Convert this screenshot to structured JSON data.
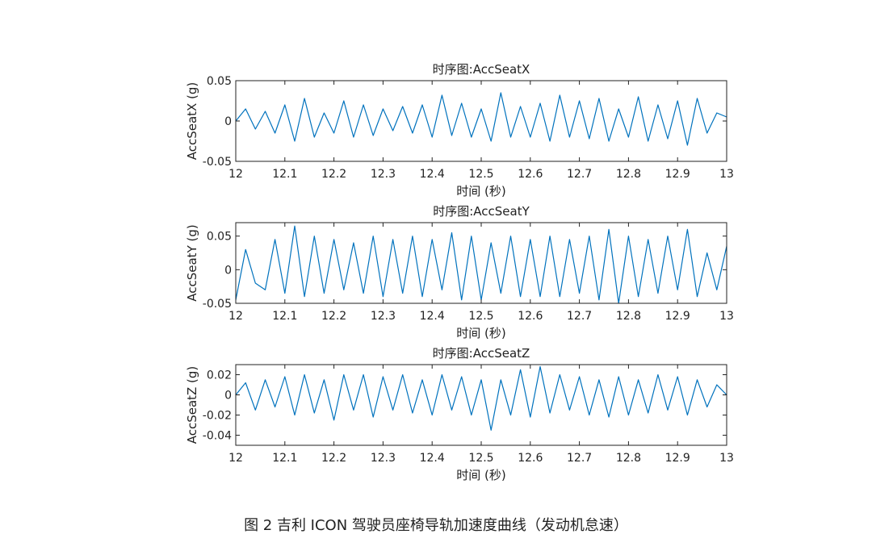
{
  "caption": "图 2 吉利 ICON 驾驶员座椅导轨加速度曲线（发动机怠速）",
  "line_color": "#0072BD",
  "chart_data": [
    {
      "type": "line",
      "title": "时序图:AccSeatX",
      "xlabel": "时间 (秒)",
      "ylabel": "AccSeatX (g)",
      "xlim": [
        12,
        13
      ],
      "ylim": [
        -0.05,
        0.05
      ],
      "xticks": [
        12,
        12.1,
        12.2,
        12.3,
        12.4,
        12.5,
        12.6,
        12.7,
        12.8,
        12.9,
        13
      ],
      "xtick_labels": [
        "12",
        "12.1",
        "12.2",
        "12.3",
        "12.4",
        "12.5",
        "12.6",
        "12.7",
        "12.8",
        "12.9",
        "13"
      ],
      "yticks": [
        -0.05,
        0,
        0.05
      ],
      "ytick_labels": [
        "-0.05",
        "0",
        "0.05"
      ],
      "grid": false,
      "series": [
        {
          "x": [
            12,
            12.02,
            12.04,
            12.06,
            12.08,
            12.1,
            12.12,
            12.14,
            12.16,
            12.18,
            12.2,
            12.22,
            12.24,
            12.26,
            12.28,
            12.3,
            12.32,
            12.34,
            12.36,
            12.38,
            12.4,
            12.42,
            12.44,
            12.46,
            12.48,
            12.5,
            12.52,
            12.54,
            12.56,
            12.58,
            12.6,
            12.62,
            12.64,
            12.66,
            12.68,
            12.7,
            12.72,
            12.74,
            12.76,
            12.78,
            12.8,
            12.82,
            12.84,
            12.86,
            12.88,
            12.9,
            12.92,
            12.94,
            12.96,
            12.98,
            13
          ],
          "y": [
            0.0,
            0.015,
            -0.01,
            0.012,
            -0.015,
            0.02,
            -0.025,
            0.028,
            -0.02,
            0.01,
            -0.015,
            0.025,
            -0.02,
            0.02,
            -0.018,
            0.015,
            -0.012,
            0.018,
            -0.015,
            0.02,
            -0.02,
            0.032,
            -0.018,
            0.022,
            -0.02,
            0.015,
            -0.025,
            0.035,
            -0.02,
            0.018,
            -0.02,
            0.022,
            -0.025,
            0.032,
            -0.02,
            0.025,
            -0.022,
            0.028,
            -0.025,
            0.015,
            -0.02,
            0.03,
            -0.025,
            0.02,
            -0.022,
            0.025,
            -0.03,
            0.028,
            -0.015,
            0.01,
            0.005
          ]
        }
      ]
    },
    {
      "type": "line",
      "title": "时序图:AccSeatY",
      "xlabel": "时间 (秒)",
      "ylabel": "AccSeatY (g)",
      "xlim": [
        12,
        13
      ],
      "ylim": [
        -0.05,
        0.07
      ],
      "xticks": [
        12,
        12.1,
        12.2,
        12.3,
        12.4,
        12.5,
        12.6,
        12.7,
        12.8,
        12.9,
        13
      ],
      "xtick_labels": [
        "12",
        "12.1",
        "12.2",
        "12.3",
        "12.4",
        "12.5",
        "12.6",
        "12.7",
        "12.8",
        "12.9",
        "13"
      ],
      "yticks": [
        -0.05,
        0,
        0.05
      ],
      "ytick_labels": [
        "-0.05",
        "0",
        "0.05"
      ],
      "grid": false,
      "series": [
        {
          "x": [
            12,
            12.02,
            12.04,
            12.06,
            12.08,
            12.1,
            12.12,
            12.14,
            12.16,
            12.18,
            12.2,
            12.22,
            12.24,
            12.26,
            12.28,
            12.3,
            12.32,
            12.34,
            12.36,
            12.38,
            12.4,
            12.42,
            12.44,
            12.46,
            12.48,
            12.5,
            12.52,
            12.54,
            12.56,
            12.58,
            12.6,
            12.62,
            12.64,
            12.66,
            12.68,
            12.7,
            12.72,
            12.74,
            12.76,
            12.78,
            12.8,
            12.82,
            12.84,
            12.86,
            12.88,
            12.9,
            12.92,
            12.94,
            12.96,
            12.98,
            13
          ],
          "y": [
            -0.045,
            0.03,
            -0.02,
            -0.03,
            0.045,
            -0.035,
            0.065,
            -0.04,
            0.05,
            -0.035,
            0.045,
            -0.03,
            0.04,
            -0.035,
            0.05,
            -0.04,
            0.045,
            -0.035,
            0.05,
            -0.04,
            0.045,
            -0.03,
            0.055,
            -0.045,
            0.05,
            -0.045,
            0.04,
            -0.035,
            0.05,
            -0.04,
            0.045,
            -0.04,
            0.05,
            -0.04,
            0.045,
            -0.035,
            0.05,
            -0.045,
            0.06,
            -0.05,
            0.05,
            -0.04,
            0.045,
            -0.035,
            0.05,
            -0.03,
            0.06,
            -0.04,
            0.025,
            -0.03,
            0.035
          ]
        }
      ]
    },
    {
      "type": "line",
      "title": "时序图:AccSeatZ",
      "xlabel": "时间 (秒)",
      "ylabel": "AccSeatZ (g)",
      "xlim": [
        12,
        13
      ],
      "ylim": [
        -0.05,
        0.03
      ],
      "xticks": [
        12,
        12.1,
        12.2,
        12.3,
        12.4,
        12.5,
        12.6,
        12.7,
        12.8,
        12.9,
        13
      ],
      "xtick_labels": [
        "12",
        "12.1",
        "12.2",
        "12.3",
        "12.4",
        "12.5",
        "12.6",
        "12.7",
        "12.8",
        "12.9",
        "13"
      ],
      "yticks": [
        -0.04,
        -0.02,
        0,
        0.02
      ],
      "ytick_labels": [
        "-0.04",
        "-0.02",
        "0",
        "0.02"
      ],
      "grid": false,
      "series": [
        {
          "x": [
            12,
            12.02,
            12.04,
            12.06,
            12.08,
            12.1,
            12.12,
            12.14,
            12.16,
            12.18,
            12.2,
            12.22,
            12.24,
            12.26,
            12.28,
            12.3,
            12.32,
            12.34,
            12.36,
            12.38,
            12.4,
            12.42,
            12.44,
            12.46,
            12.48,
            12.5,
            12.52,
            12.54,
            12.56,
            12.58,
            12.6,
            12.62,
            12.64,
            12.66,
            12.68,
            12.7,
            12.72,
            12.74,
            12.76,
            12.78,
            12.8,
            12.82,
            12.84,
            12.86,
            12.88,
            12.9,
            12.92,
            12.94,
            12.96,
            12.98,
            13
          ],
          "y": [
            0.0,
            0.012,
            -0.015,
            0.015,
            -0.012,
            0.018,
            -0.02,
            0.02,
            -0.018,
            0.015,
            -0.025,
            0.02,
            -0.015,
            0.02,
            -0.022,
            0.018,
            -0.015,
            0.02,
            -0.018,
            0.015,
            -0.02,
            0.02,
            -0.015,
            0.018,
            -0.02,
            0.015,
            -0.035,
            0.015,
            -0.02,
            0.025,
            -0.022,
            0.028,
            -0.018,
            0.02,
            -0.015,
            0.018,
            -0.02,
            0.015,
            -0.022,
            0.018,
            -0.02,
            0.015,
            -0.018,
            0.02,
            -0.015,
            0.018,
            -0.02,
            0.015,
            -0.012,
            0.01,
            0.0
          ]
        }
      ]
    }
  ]
}
